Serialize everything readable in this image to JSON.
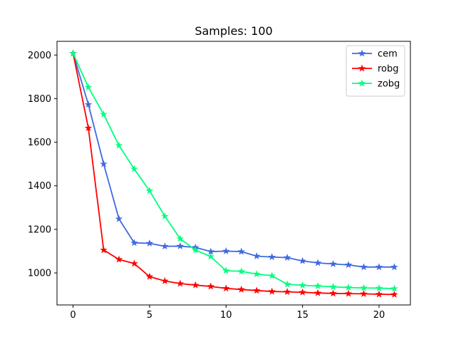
{
  "chart_data": {
    "type": "line",
    "title": "Samples: 100",
    "xlabel": "",
    "ylabel": "",
    "xlim": [
      -1.05,
      22.05
    ],
    "ylim": [
      853,
      2063
    ],
    "xticks": [
      0,
      5,
      10,
      15,
      20
    ],
    "yticks": [
      1000,
      1200,
      1400,
      1600,
      1800,
      2000
    ],
    "grid": false,
    "legend_position": "top-right",
    "x": [
      0,
      1,
      2,
      3,
      4,
      5,
      6,
      7,
      8,
      9,
      10,
      11,
      12,
      13,
      14,
      15,
      16,
      17,
      18,
      19,
      20,
      21
    ],
    "series": [
      {
        "name": "cem",
        "color": "#4169e1",
        "marker": "star",
        "values": [
          2008,
          1773,
          1500,
          1248,
          1138,
          1136,
          1122,
          1123,
          1117,
          1098,
          1100,
          1098,
          1077,
          1073,
          1070,
          1055,
          1046,
          1041,
          1037,
          1027,
          1027,
          1027
        ]
      },
      {
        "name": "robg",
        "color": "#ff0000",
        "marker": "star",
        "values": [
          2008,
          1665,
          1105,
          1062,
          1043,
          983,
          963,
          951,
          944,
          938,
          929,
          924,
          919,
          915,
          913,
          911,
          908,
          906,
          905,
          904,
          902,
          901
        ]
      },
      {
        "name": "zobg",
        "color": "#00ff7f",
        "marker": "star",
        "values": [
          2008,
          1852,
          1728,
          1585,
          1477,
          1377,
          1260,
          1157,
          1105,
          1075,
          1010,
          1007,
          995,
          987,
          948,
          943,
          940,
          936,
          933,
          931,
          930,
          928
        ]
      }
    ]
  }
}
